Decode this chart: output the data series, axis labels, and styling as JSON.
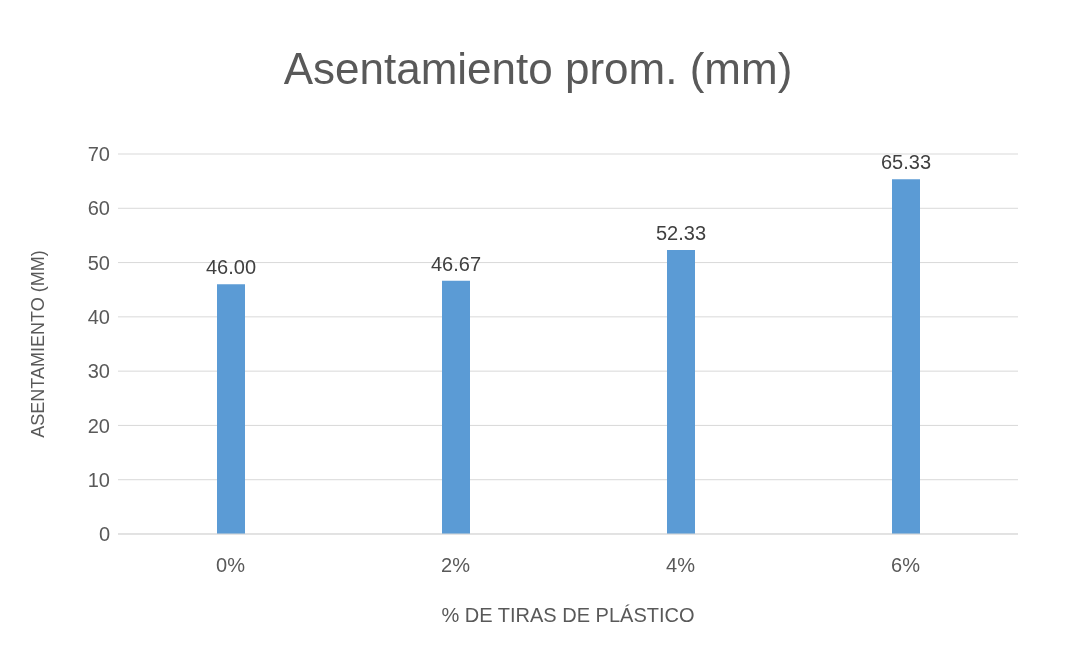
{
  "chart_data": {
    "type": "bar",
    "title": "Asentamiento prom. (mm)",
    "xlabel": "% DE TIRAS DE PLÁSTICO",
    "ylabel": "ASENTAMIENTO (MM)",
    "categories": [
      "0%",
      "2%",
      "4%",
      "6%"
    ],
    "values": [
      46.0,
      46.67,
      52.33,
      65.33
    ],
    "value_labels": [
      "46.00",
      "46.67",
      "52.33",
      "65.33"
    ],
    "color": "#5b9bd5",
    "ylim": [
      0,
      70
    ],
    "yticks": [
      0,
      10,
      20,
      30,
      40,
      50,
      60,
      70
    ],
    "grid": "y"
  }
}
